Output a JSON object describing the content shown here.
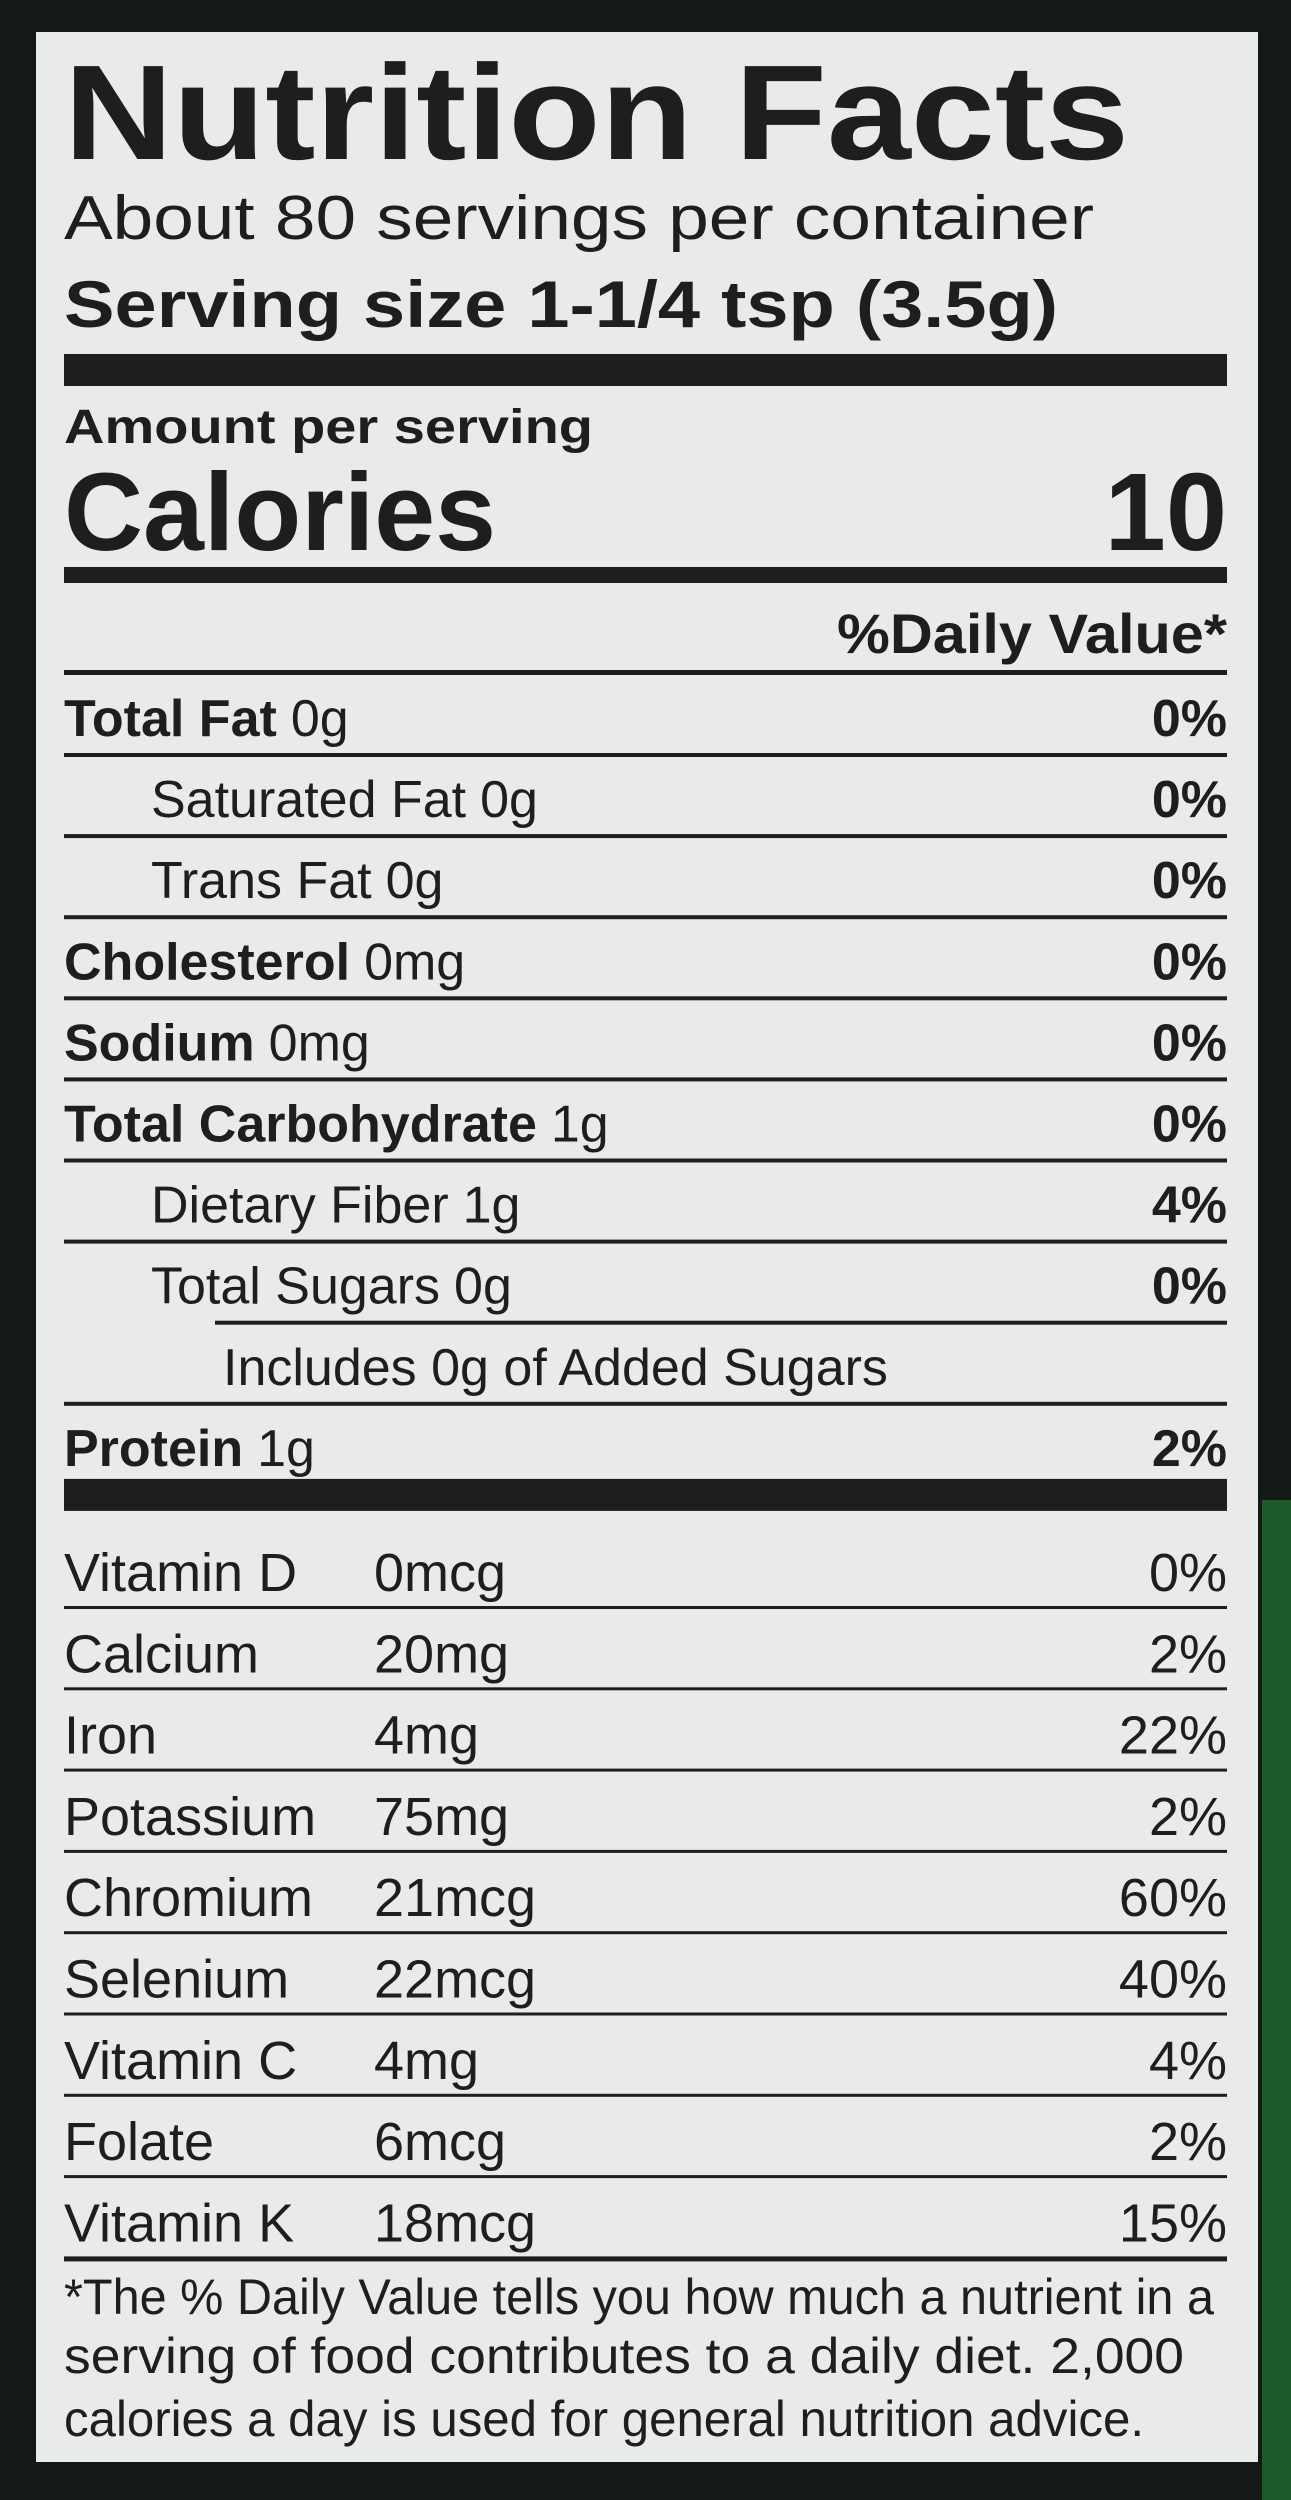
{
  "header": {
    "title": "Nutrition Facts",
    "servings": "About 80 servings per container",
    "serving_size": "Serving size 1-1/4 tsp (3.5g)"
  },
  "amount_per_serving": "Amount per serving",
  "calories": {
    "label": "Calories",
    "value": "10"
  },
  "daily_value_header": "%Daily Value*",
  "nutrients": [
    {
      "name": "Total Fat",
      "amount": "0g",
      "dv": "0%",
      "sub": [
        {
          "name": "Saturated Fat",
          "amount": "0g",
          "dv": "0%"
        },
        {
          "name": "Trans Fat",
          "amount": "0g",
          "dv": "0%"
        }
      ]
    },
    {
      "name": "Cholesterol",
      "amount": "0mg",
      "dv": "0%"
    },
    {
      "name": "Sodium",
      "amount": "0mg",
      "dv": "0%"
    },
    {
      "name": "Total Carbohydrate",
      "amount": "1g",
      "dv": "0%",
      "sub": [
        {
          "name": "Dietary Fiber",
          "amount": "1g",
          "dv": "4%"
        },
        {
          "name": "Total Sugars",
          "amount": "0g",
          "dv": "0%",
          "includes": "Includes 0g of Added Sugars"
        }
      ]
    },
    {
      "name": "Protein",
      "amount": "1g",
      "dv": "2%"
    }
  ],
  "vitamins": [
    {
      "name": "Vitamin D",
      "amount": "0mcg",
      "dv": "0%"
    },
    {
      "name": "Calcium",
      "amount": "20mg",
      "dv": "2%"
    },
    {
      "name": "Iron",
      "amount": "4mg",
      "dv": "22%"
    },
    {
      "name": "Potassium",
      "amount": "75mg",
      "dv": "2%"
    },
    {
      "name": "Chromium",
      "amount": "21mcg",
      "dv": "60%"
    },
    {
      "name": "Selenium",
      "amount": "22mcg",
      "dv": "40%"
    },
    {
      "name": "Vitamin C",
      "amount": "4mg",
      "dv": "4%"
    },
    {
      "name": "Folate",
      "amount": "6mcg",
      "dv": "2%"
    },
    {
      "name": "Vitamin K",
      "amount": "18mcg",
      "dv": "15%"
    }
  ],
  "footnote": [
    "*The % Daily Value tells you how much a nutrient in a",
    "serving of food contributes to a daily diet. 2,000",
    "calories a day is used for general nutrition advice."
  ]
}
